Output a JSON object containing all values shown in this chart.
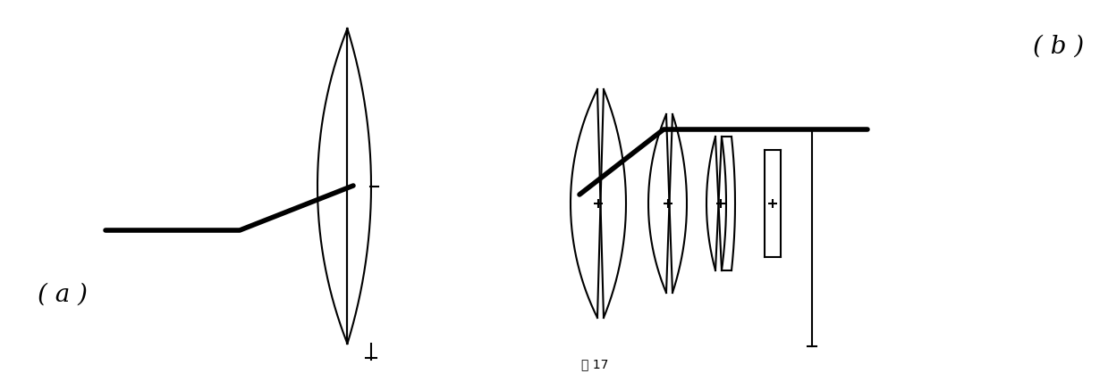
{
  "bg_color": "#ffffff",
  "label_a": "( a )",
  "label_b": "( b )",
  "label_fig": "图 17",
  "fig_width": 12.39,
  "fig_height": 4.28
}
